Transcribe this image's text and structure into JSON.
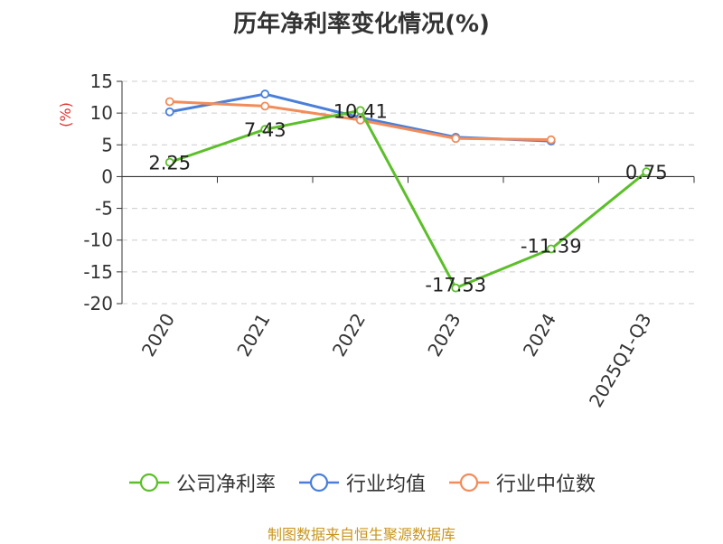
{
  "chart_data": {
    "type": "line",
    "title": "历年净利率变化情况(%)",
    "ylabel": "(%)",
    "xlabel": "",
    "categories": [
      "2020",
      "2021",
      "2022",
      "2023",
      "2024",
      "2025Q1-Q3"
    ],
    "ylim": [
      -20,
      15
    ],
    "yticks": [
      15,
      10,
      5,
      0,
      -5,
      -10,
      -15,
      -20
    ],
    "grid": true,
    "legend_position": "bottom",
    "series": [
      {
        "name": "公司净利率",
        "color": "#5cbf2a",
        "values": [
          2.25,
          7.43,
          10.41,
          -17.53,
          -11.39,
          0.75
        ],
        "labels": [
          "2.25",
          "7.43",
          "10.41",
          "-17.53",
          "-11.39",
          "0.75"
        ]
      },
      {
        "name": "行业均值",
        "color": "#4a7fd9",
        "values": [
          10.2,
          13.0,
          9.3,
          6.2,
          5.6,
          null
        ]
      },
      {
        "name": "行业中位数",
        "color": "#f28c5a",
        "values": [
          11.8,
          11.1,
          8.9,
          6.0,
          5.8,
          null
        ]
      }
    ]
  },
  "source_note": "制图数据来自恒生聚源数据库"
}
